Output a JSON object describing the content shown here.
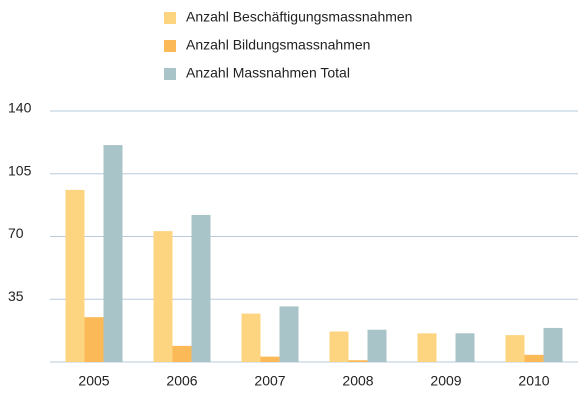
{
  "chart_data": {
    "type": "bar",
    "categories": [
      "2005",
      "2006",
      "2007",
      "2008",
      "2009",
      "2010"
    ],
    "series": [
      {
        "name": "Anzahl Beschäftigungsmassnahmen",
        "color": "#fdd581",
        "values": [
          96,
          73,
          27,
          17,
          16,
          15
        ]
      },
      {
        "name": "Anzahl Bildungsmassnahmen",
        "color": "#fbb957",
        "values": [
          25,
          9,
          3,
          1,
          0,
          4
        ]
      },
      {
        "name": "Anzahl Massnahmen Total",
        "color": "#a8c4c9",
        "values": [
          121,
          82,
          31,
          18,
          16,
          19
        ]
      }
    ],
    "ylim": [
      0,
      140
    ],
    "yticks": [
      35,
      70,
      105,
      140
    ],
    "grid": true
  }
}
